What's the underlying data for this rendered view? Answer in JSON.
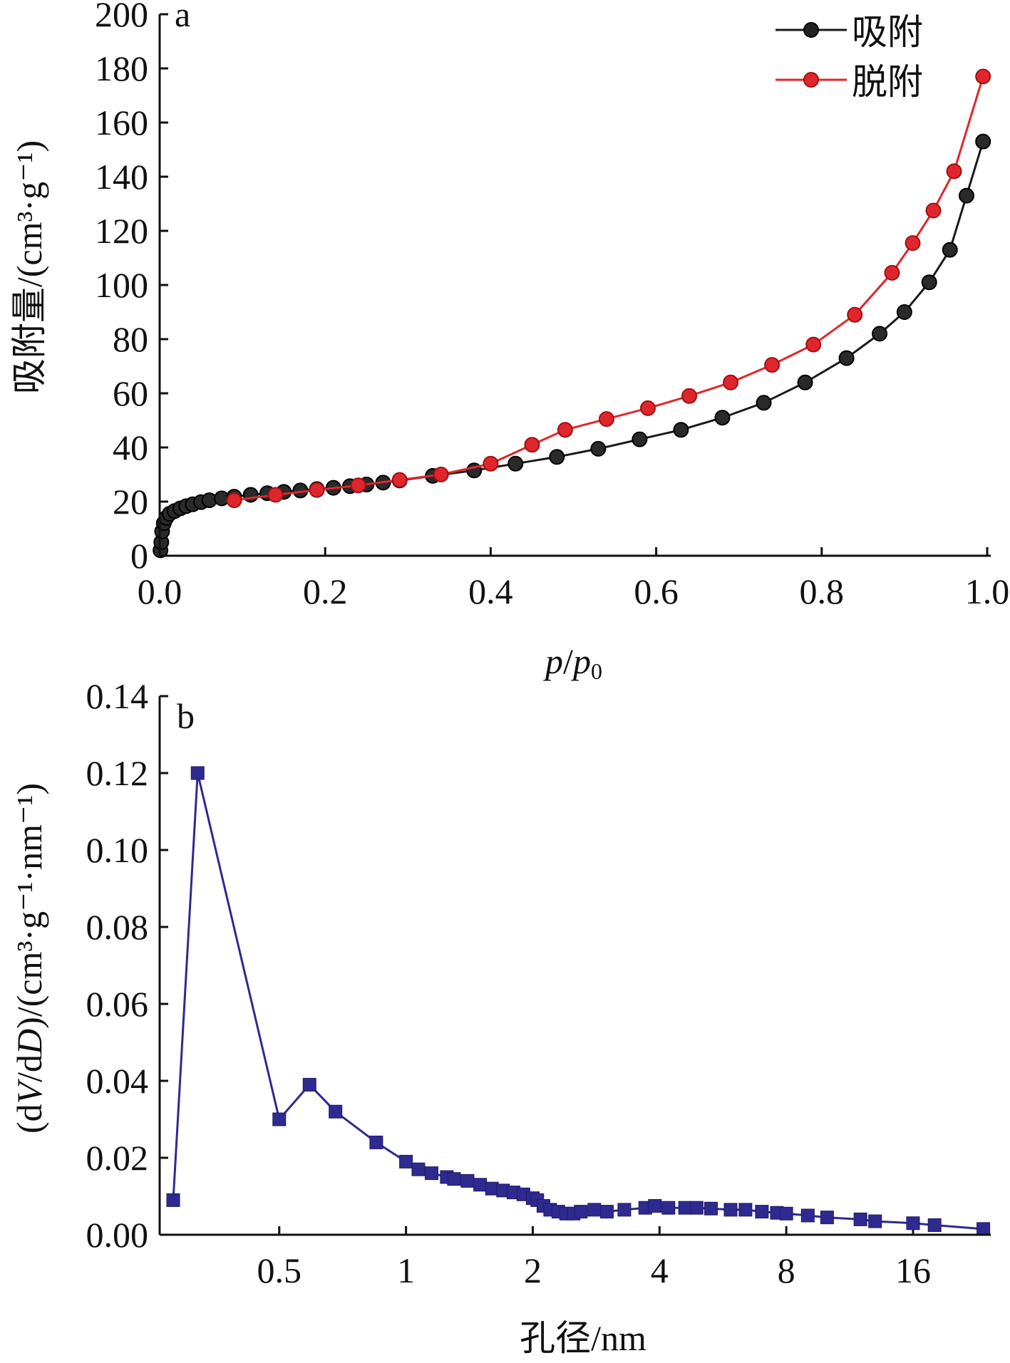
{
  "chart_data": [
    {
      "type": "line",
      "panel_label": "a",
      "xlabel_italic": "p",
      "xlabel_sep": "/",
      "xlabel_italic2": "p",
      "xlabel_sub": "0",
      "ylabel": "吸附量/(cm³·g⁻¹)",
      "xlim": [
        0.0,
        1.0
      ],
      "ylim": [
        0,
        200
      ],
      "x_ticks": [
        0.0,
        0.2,
        0.4,
        0.6,
        0.8,
        1.0
      ],
      "x_tick_labels": [
        "0.0",
        "0.2",
        "0.4",
        "0.6",
        "0.8",
        "1.0"
      ],
      "y_ticks": [
        0,
        20,
        40,
        60,
        80,
        100,
        120,
        140,
        160,
        180,
        200
      ],
      "y_tick_labels": [
        "0",
        "20",
        "40",
        "60",
        "80",
        "100",
        "120",
        "140",
        "160",
        "180",
        "200"
      ],
      "legend_position": "top-right",
      "series": [
        {
          "name": "吸附",
          "color": "#1a1a1a",
          "marker": "circle",
          "x": [
            0.001,
            0.002,
            0.003,
            0.005,
            0.008,
            0.012,
            0.018,
            0.025,
            0.032,
            0.04,
            0.05,
            0.06,
            0.075,
            0.09,
            0.11,
            0.13,
            0.15,
            0.17,
            0.19,
            0.21,
            0.23,
            0.25,
            0.27,
            0.29,
            0.33,
            0.38,
            0.43,
            0.48,
            0.53,
            0.58,
            0.63,
            0.68,
            0.73,
            0.78,
            0.83,
            0.87,
            0.9,
            0.93,
            0.955,
            0.975,
            0.995
          ],
          "y": [
            2,
            5,
            9,
            12,
            14,
            15.5,
            16.5,
            17.5,
            18.3,
            19,
            19.8,
            20.5,
            21.2,
            21.8,
            22.5,
            23.1,
            23.6,
            24.1,
            24.6,
            25.1,
            25.7,
            26.3,
            27,
            27.8,
            29.5,
            31.5,
            34,
            36.5,
            39.5,
            43,
            46.5,
            51,
            56.5,
            64,
            73,
            82,
            90,
            101,
            113,
            133,
            153
          ]
        },
        {
          "name": "脱附",
          "color": "#e0262d",
          "marker": "circle",
          "x": [
            0.09,
            0.14,
            0.19,
            0.24,
            0.29,
            0.34,
            0.4,
            0.45,
            0.49,
            0.54,
            0.59,
            0.64,
            0.69,
            0.74,
            0.79,
            0.84,
            0.885,
            0.91,
            0.935,
            0.96,
            0.995
          ],
          "y": [
            20.5,
            22.5,
            24.3,
            26,
            28,
            30,
            34,
            41,
            46.5,
            50.5,
            54.5,
            59,
            64,
            70.5,
            78,
            89,
            104.5,
            115.5,
            127.5,
            142,
            177
          ]
        }
      ]
    },
    {
      "type": "line",
      "panel_label": "b",
      "xlabel": "孔径/nm",
      "ylabel_pre": "(d",
      "ylabel_V": "V",
      "ylabel_mid": "/d",
      "ylabel_D": "D",
      "ylabel_post": ")/(cm³·g⁻¹·nm⁻¹)",
      "x_scale": "log2",
      "xlim": [
        0.26,
        24
      ],
      "ylim": [
        0.0,
        0.14
      ],
      "x_ticks": [
        0.5,
        1,
        2,
        4,
        8,
        16
      ],
      "x_tick_labels": [
        "0.5",
        "1",
        "2",
        "4",
        "8",
        "16"
      ],
      "y_ticks": [
        0.0,
        0.02,
        0.04,
        0.06,
        0.08,
        0.1,
        0.12,
        0.14
      ],
      "y_tick_labels": [
        "0.00",
        "0.02",
        "0.04",
        "0.06",
        "0.08",
        "0.10",
        "0.12",
        "0.14"
      ],
      "series": [
        {
          "color": "#2e2a8f",
          "marker": "square",
          "x": [
            0.28,
            0.32,
            0.5,
            0.59,
            0.68,
            0.85,
            1.0,
            1.07,
            1.15,
            1.25,
            1.3,
            1.4,
            1.5,
            1.6,
            1.7,
            1.8,
            1.9,
            2.0,
            2.05,
            2.12,
            2.2,
            2.3,
            2.4,
            2.5,
            2.6,
            2.8,
            3.0,
            3.3,
            3.7,
            3.9,
            4.2,
            4.6,
            4.9,
            5.3,
            5.9,
            6.4,
            7.0,
            7.6,
            8.0,
            9.0,
            10.0,
            12.0,
            13.0,
            16.0,
            18.0,
            23.5
          ],
          "y": [
            0.009,
            0.12,
            0.03,
            0.039,
            0.032,
            0.024,
            0.019,
            0.017,
            0.016,
            0.015,
            0.0145,
            0.014,
            0.013,
            0.012,
            0.0115,
            0.011,
            0.0105,
            0.0095,
            0.009,
            0.0075,
            0.0065,
            0.006,
            0.0055,
            0.0055,
            0.006,
            0.0065,
            0.006,
            0.0065,
            0.007,
            0.0075,
            0.007,
            0.007,
            0.007,
            0.0068,
            0.0065,
            0.0065,
            0.006,
            0.0057,
            0.0055,
            0.005,
            0.0045,
            0.004,
            0.0035,
            0.003,
            0.0025,
            0.0015
          ]
        }
      ]
    }
  ]
}
